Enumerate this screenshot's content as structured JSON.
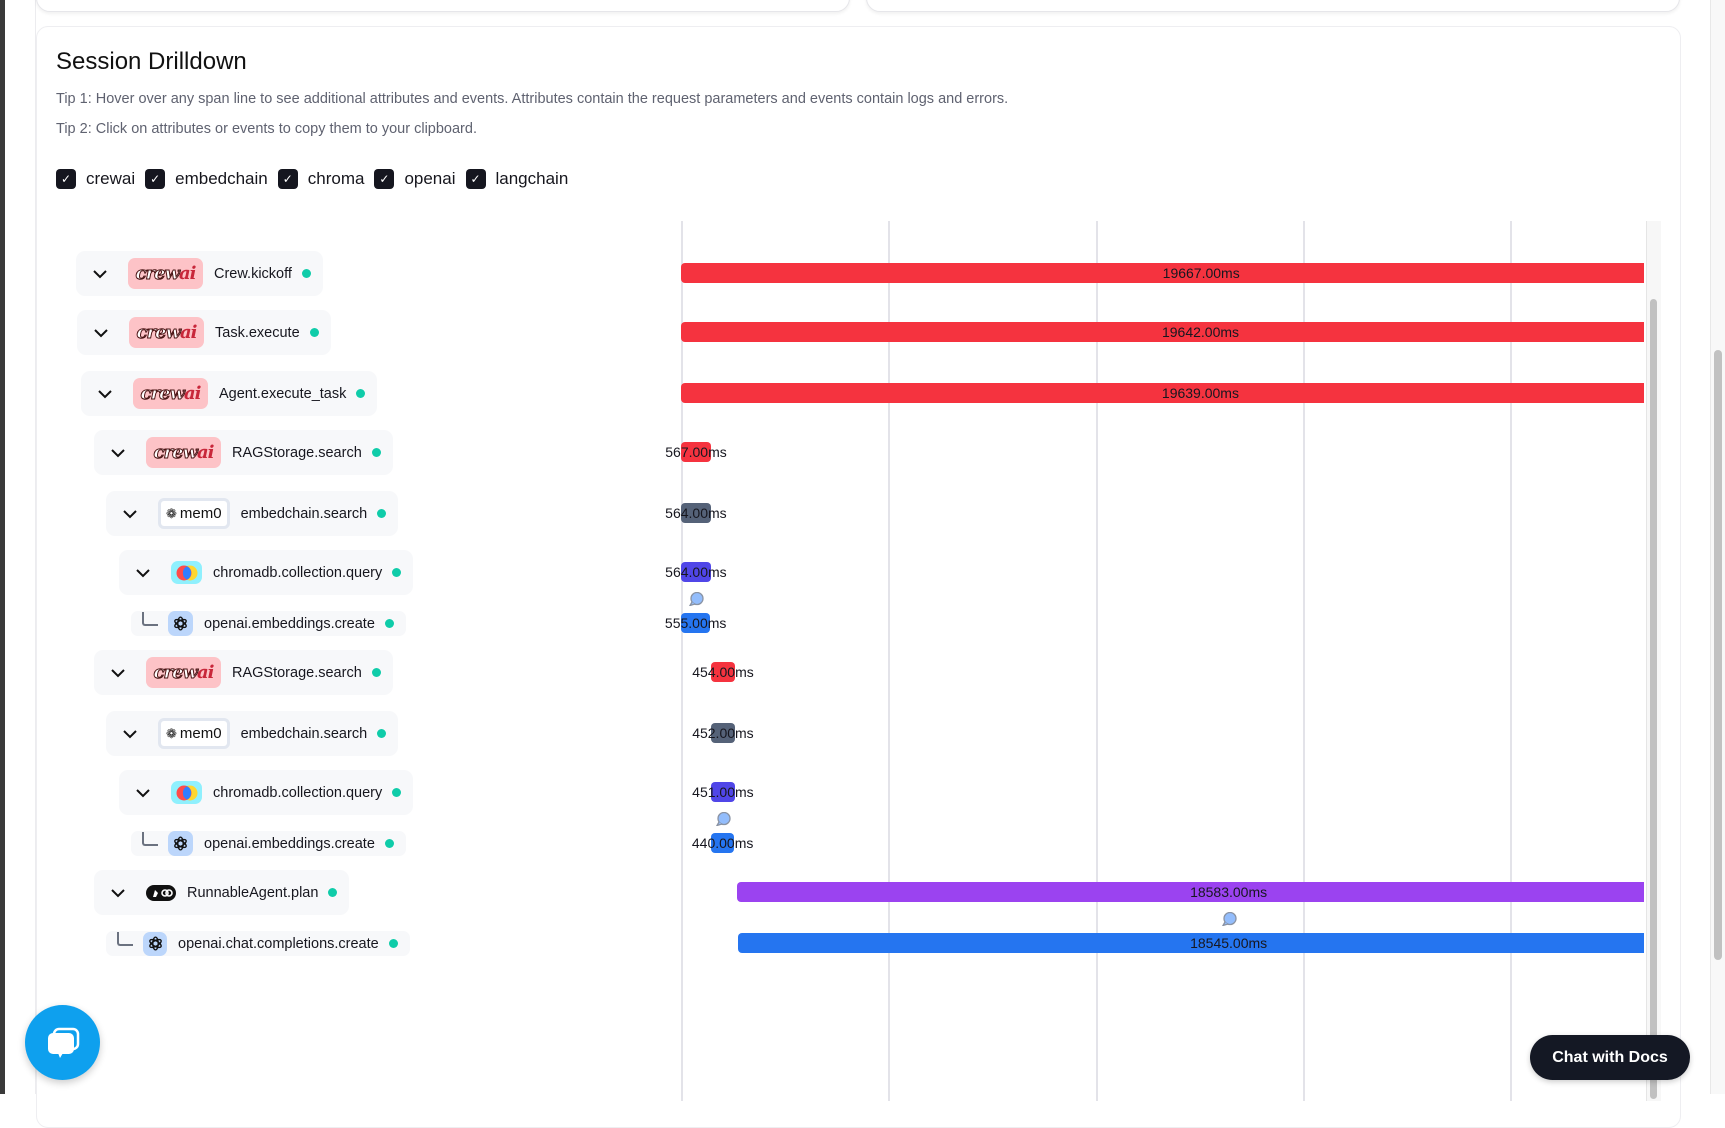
{
  "drilldown": {
    "title": "Session Drilldown",
    "tip1": "Tip 1: Hover over any span line to see additional attributes and events. Attributes contain the request parameters and events contain logs and errors.",
    "tip2": "Tip 2: Click on attributes or events to copy them to your clipboard.",
    "filters": [
      {
        "label": "crewai",
        "checked": true
      },
      {
        "label": "embedchain",
        "checked": true
      },
      {
        "label": "chroma",
        "checked": true
      },
      {
        "label": "openai",
        "checked": true
      },
      {
        "label": "langchain",
        "checked": true
      }
    ]
  },
  "logos": {
    "crewai_text": "crew",
    "crewai_ai": "ai",
    "mem0_text": "mem0"
  },
  "colors": {
    "crewai": "#f5333f",
    "embedchain": "#556278",
    "chroma": "#5046e8",
    "openai": "#2575f0",
    "langchain": "#9b43f0",
    "status_ok": "#0fcca9"
  },
  "spans": [
    {
      "name": "Crew.kickoff",
      "integration": "crewai",
      "duration_label": "19667.00ms",
      "duration_ms": 19667,
      "start_ms": 0,
      "expandable": true,
      "events": false
    },
    {
      "name": "Task.execute",
      "integration": "crewai",
      "duration_label": "19642.00ms",
      "duration_ms": 19642,
      "start_ms": 0,
      "expandable": true,
      "events": false
    },
    {
      "name": "Agent.execute_task",
      "integration": "crewai",
      "duration_label": "19639.00ms",
      "duration_ms": 19639,
      "start_ms": 0,
      "expandable": true,
      "events": false
    },
    {
      "name": "RAGStorage.search",
      "integration": "crewai",
      "duration_label": "567.00ms",
      "duration_ms": 567,
      "start_ms": 0,
      "expandable": true,
      "events": false
    },
    {
      "name": "embedchain.search",
      "integration": "embedchain",
      "duration_label": "564.00ms",
      "duration_ms": 564,
      "start_ms": 0,
      "expandable": true,
      "events": false
    },
    {
      "name": "chromadb.collection.query",
      "integration": "chroma",
      "duration_label": "564.00ms",
      "duration_ms": 564,
      "start_ms": 0,
      "expandable": true,
      "events": false
    },
    {
      "name": "openai.embeddings.create",
      "integration": "openai",
      "duration_label": "555.00ms",
      "duration_ms": 555,
      "start_ms": 0,
      "expandable": false,
      "events": true
    },
    {
      "name": "RAGStorage.search",
      "integration": "crewai",
      "duration_label": "454.00ms",
      "duration_ms": 454,
      "start_ms": 567,
      "expandable": true,
      "events": false
    },
    {
      "name": "embedchain.search",
      "integration": "embedchain",
      "duration_label": "452.00ms",
      "duration_ms": 452,
      "start_ms": 567,
      "expandable": true,
      "events": false
    },
    {
      "name": "chromadb.collection.query",
      "integration": "chroma",
      "duration_label": "451.00ms",
      "duration_ms": 451,
      "start_ms": 567,
      "expandable": true,
      "events": false
    },
    {
      "name": "openai.embeddings.create",
      "integration": "openai",
      "duration_label": "440.00ms",
      "duration_ms": 440,
      "start_ms": 567,
      "expandable": false,
      "events": true
    },
    {
      "name": "RunnableAgent.plan",
      "integration": "langchain",
      "duration_label": "18583.00ms",
      "duration_ms": 18583,
      "start_ms": 1060,
      "expandable": true,
      "events": false
    },
    {
      "name": "openai.chat.completions.create",
      "integration": "openai",
      "duration_label": "18545.00ms",
      "duration_ms": 18545,
      "start_ms": 1080,
      "expandable": false,
      "events": true
    }
  ],
  "chat_with_docs": "Chat with Docs"
}
